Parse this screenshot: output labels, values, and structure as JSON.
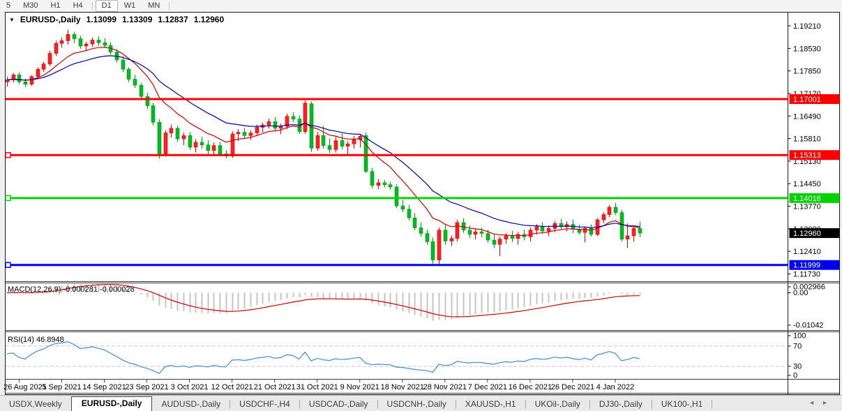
{
  "toolbar": {
    "buttons": [
      {
        "label": "5"
      },
      {
        "label": "M30"
      },
      {
        "label": "H1"
      },
      {
        "label": "H4"
      },
      {
        "sep": true
      },
      {
        "label": "D1",
        "active": true
      },
      {
        "label": "W1"
      },
      {
        "label": "MN"
      },
      {
        "sep": true
      }
    ]
  },
  "chart": {
    "dropdown_icon": "▼",
    "symbol": "EURUSD-,Daily",
    "ohlc": {
      "open": "1.13099",
      "high": "1.13309",
      "low": "1.12837",
      "close": "1.12960"
    }
  },
  "macd_panel": {
    "header": "MACD(12,26,9) -0.000281 -0.000028",
    "axis_ticks": [
      "0.002966",
      "0.00",
      "-0.01042"
    ]
  },
  "rsi_panel": {
    "header": "RSI(14) 46.8948",
    "axis_ticks": [
      "100",
      "70",
      "30",
      "0"
    ]
  },
  "tabs": {
    "active_index": 1,
    "items": [
      "USDX,Weekly",
      "EURUSD-,Daily",
      "AUDUSD-,Daily",
      "USDCHF-,H4",
      "USDCAD-,Daily",
      "USDCNH-,Daily",
      "XAUUSD-,H1",
      "UKOil-,Daily",
      "DJ30-,Daily",
      "UK100-,H1"
    ],
    "scroll_left": "◄",
    "scroll_right": "►"
  },
  "chart_data": {
    "type": "candlestick",
    "title": "EURUSD-,Daily",
    "x_axis": {
      "labels": [
        "26 Aug 2021",
        "5 Sep 2021",
        "14 Sep 2021",
        "23 Sep 2021",
        "3 Oct 2021",
        "12 Oct 2021",
        "21 Oct 2021",
        "31 Oct 2021",
        "9 Nov 2021",
        "18 Nov 2021",
        "28 Nov 2021",
        "7 Dec 2021",
        "16 Dec 2021",
        "26 Dec 2021",
        "4 Jan 2022"
      ],
      "first_label_bar_index": 2,
      "bars_per_label": 7
    },
    "y_axis": {
      "top_value": 1.1921,
      "tick_step": 0.0068,
      "tick_labels": [
        "1.19210",
        "1.18530",
        "1.17850",
        "1.17170",
        "1.16490",
        "1.15810",
        "1.15130",
        "1.14450",
        "1.13770",
        "1.13090",
        "1.12410",
        "1.11730"
      ]
    },
    "candles": [
      [
        1.1752,
        1.1768,
        1.1738,
        1.1758
      ],
      [
        1.1758,
        1.1778,
        1.175,
        1.1773
      ],
      [
        1.1773,
        1.1781,
        1.1745,
        1.1752
      ],
      [
        1.1752,
        1.1762,
        1.1736,
        1.1745
      ],
      [
        1.1745,
        1.1772,
        1.174,
        1.1768
      ],
      [
        1.1768,
        1.1796,
        1.176,
        1.179
      ],
      [
        1.179,
        1.1813,
        1.1782,
        1.1806
      ],
      [
        1.1806,
        1.1846,
        1.18,
        1.1838
      ],
      [
        1.1838,
        1.1876,
        1.183,
        1.1868
      ],
      [
        1.1868,
        1.1886,
        1.1855,
        1.1876
      ],
      [
        1.1876,
        1.1909,
        1.1864,
        1.1895
      ],
      [
        1.1895,
        1.1903,
        1.1869,
        1.1882
      ],
      [
        1.1882,
        1.1891,
        1.1852,
        1.186
      ],
      [
        1.186,
        1.1873,
        1.1845,
        1.1866
      ],
      [
        1.1866,
        1.1886,
        1.1858,
        1.1878
      ],
      [
        1.1878,
        1.1889,
        1.186,
        1.187
      ],
      [
        1.187,
        1.1883,
        1.1854,
        1.1862
      ],
      [
        1.1862,
        1.1871,
        1.1834,
        1.1842
      ],
      [
        1.1842,
        1.1851,
        1.181,
        1.1818
      ],
      [
        1.1818,
        1.1829,
        1.1781,
        1.179
      ],
      [
        1.179,
        1.1796,
        1.1751,
        1.176
      ],
      [
        1.176,
        1.1773,
        1.1734,
        1.1742
      ],
      [
        1.1742,
        1.1749,
        1.1699,
        1.1708
      ],
      [
        1.1708,
        1.1719,
        1.1671,
        1.168
      ],
      [
        1.168,
        1.1689,
        1.1621,
        1.163
      ],
      [
        1.163,
        1.1639,
        1.1521,
        1.1535
      ],
      [
        1.1535,
        1.1606,
        1.1527,
        1.1598
      ],
      [
        1.1598,
        1.1623,
        1.1584,
        1.1612
      ],
      [
        1.1612,
        1.1619,
        1.1571,
        1.158
      ],
      [
        1.158,
        1.1599,
        1.1561,
        1.159
      ],
      [
        1.159,
        1.1601,
        1.1547,
        1.1555
      ],
      [
        1.1555,
        1.1579,
        1.1539,
        1.157
      ],
      [
        1.157,
        1.1586,
        1.1551,
        1.1562
      ],
      [
        1.1562,
        1.1576,
        1.1534,
        1.1545
      ],
      [
        1.1545,
        1.1569,
        1.1529,
        1.156
      ],
      [
        1.156,
        1.1571,
        1.1527,
        1.1535
      ],
      [
        1.1535,
        1.1546,
        1.1521,
        1.1528
      ],
      [
        1.1528,
        1.1603,
        1.1523,
        1.1595
      ],
      [
        1.1595,
        1.1609,
        1.1574,
        1.16
      ],
      [
        1.16,
        1.1613,
        1.1581,
        1.159
      ],
      [
        1.159,
        1.1606,
        1.1577,
        1.1598
      ],
      [
        1.1598,
        1.1623,
        1.1589,
        1.1615
      ],
      [
        1.1615,
        1.1629,
        1.1599,
        1.1622
      ],
      [
        1.1622,
        1.1641,
        1.1611,
        1.1632
      ],
      [
        1.1632,
        1.1646,
        1.1604,
        1.1612
      ],
      [
        1.1612,
        1.1626,
        1.1594,
        1.1618
      ],
      [
        1.1618,
        1.1656,
        1.1609,
        1.1648
      ],
      [
        1.1648,
        1.1661,
        1.1631,
        1.164
      ],
      [
        1.164,
        1.1651,
        1.1595,
        1.1602
      ],
      [
        1.1602,
        1.1696,
        1.1596,
        1.1688
      ],
      [
        1.1686,
        1.1693,
        1.1541,
        1.1552
      ],
      [
        1.1552,
        1.1601,
        1.1544,
        1.159
      ],
      [
        1.159,
        1.1619,
        1.1551,
        1.156
      ],
      [
        1.156,
        1.1581,
        1.1537,
        1.1548
      ],
      [
        1.1548,
        1.1586,
        1.1539,
        1.1575
      ],
      [
        1.1575,
        1.1596,
        1.1549,
        1.1558
      ],
      [
        1.1558,
        1.1573,
        1.1531,
        1.1565
      ],
      [
        1.1565,
        1.1589,
        1.1551,
        1.1578
      ],
      [
        1.1578,
        1.1596,
        1.1554,
        1.1588
      ],
      [
        1.159,
        1.1599,
        1.1477,
        1.1482
      ],
      [
        1.1482,
        1.1493,
        1.1431,
        1.144
      ],
      [
        1.144,
        1.1459,
        1.1429,
        1.1448
      ],
      [
        1.1448,
        1.1456,
        1.1434,
        1.1442
      ],
      [
        1.1442,
        1.1451,
        1.1427,
        1.1435
      ],
      [
        1.1435,
        1.1443,
        1.1371,
        1.1378
      ],
      [
        1.1378,
        1.1396,
        1.1359,
        1.1368
      ],
      [
        1.1368,
        1.1381,
        1.1334,
        1.1342
      ],
      [
        1.1342,
        1.1356,
        1.1304,
        1.1312
      ],
      [
        1.1312,
        1.1329,
        1.1285,
        1.1295
      ],
      [
        1.1295,
        1.1306,
        1.1261,
        1.127
      ],
      [
        1.127,
        1.1283,
        1.1204,
        1.1215
      ],
      [
        1.1215,
        1.1313,
        1.1199,
        1.1305
      ],
      [
        1.1305,
        1.1321,
        1.1261,
        1.1272
      ],
      [
        1.1272,
        1.1289,
        1.1257,
        1.128
      ],
      [
        1.128,
        1.1336,
        1.1271,
        1.1328
      ],
      [
        1.1328,
        1.1341,
        1.1297,
        1.1305
      ],
      [
        1.1305,
        1.1319,
        1.1281,
        1.1292
      ],
      [
        1.1292,
        1.1309,
        1.1277,
        1.13
      ],
      [
        1.13,
        1.1313,
        1.1284,
        1.1295
      ],
      [
        1.1295,
        1.1306,
        1.1267,
        1.1275
      ],
      [
        1.1275,
        1.1293,
        1.1251,
        1.1262
      ],
      [
        1.1262,
        1.1286,
        1.1227,
        1.1278
      ],
      [
        1.1278,
        1.1296,
        1.1264,
        1.1288
      ],
      [
        1.1288,
        1.1303,
        1.1269,
        1.128
      ],
      [
        1.128,
        1.1299,
        1.1261,
        1.1292
      ],
      [
        1.1292,
        1.1306,
        1.1274,
        1.1285
      ],
      [
        1.1285,
        1.1313,
        1.1271,
        1.1305
      ],
      [
        1.1305,
        1.1323,
        1.1291,
        1.1315
      ],
      [
        1.1315,
        1.1329,
        1.1294,
        1.1302
      ],
      [
        1.1302,
        1.1319,
        1.1287,
        1.131
      ],
      [
        1.131,
        1.1333,
        1.1299,
        1.1325
      ],
      [
        1.1325,
        1.1339,
        1.1307,
        1.1315
      ],
      [
        1.1315,
        1.1331,
        1.1301,
        1.1322
      ],
      [
        1.1322,
        1.1337,
        1.1296,
        1.1308
      ],
      [
        1.1308,
        1.1321,
        1.1291,
        1.1298
      ],
      [
        1.1298,
        1.1316,
        1.1268,
        1.131
      ],
      [
        1.131,
        1.1322,
        1.1286,
        1.1292
      ],
      [
        1.1292,
        1.1341,
        1.1287,
        1.1336
      ],
      [
        1.1336,
        1.1359,
        1.1326,
        1.1352
      ],
      [
        1.1352,
        1.1381,
        1.1344,
        1.1374
      ],
      [
        1.1374,
        1.1387,
        1.1351,
        1.1358
      ],
      [
        1.1358,
        1.1366,
        1.1271,
        1.1278
      ],
      [
        1.1278,
        1.1325,
        1.1252,
        1.1288
      ],
      [
        1.1288,
        1.1315,
        1.127,
        1.131
      ],
      [
        1.13099,
        1.13309,
        1.12837,
        1.1296
      ]
    ],
    "overlays": [
      {
        "name": "ma-fast",
        "type": "EMA",
        "period": 10,
        "color": "#cc0000"
      },
      {
        "name": "ma-slow",
        "type": "EMA",
        "period": 21,
        "color": "#0000a8"
      }
    ],
    "levels": [
      {
        "price": 1.17001,
        "label": "1.17001",
        "color": "#ff0000",
        "handle": false
      },
      {
        "price": 1.15313,
        "label": "1.15313",
        "color": "#ff0000",
        "handle": true
      },
      {
        "price": 1.14016,
        "label": "1.14016",
        "color": "#00d400",
        "handle": true
      },
      {
        "price": 1.11999,
        "label": "1.11999",
        "color": "#0000f0",
        "handle": true
      }
    ],
    "current_price": {
      "price": 1.1296,
      "label": "1.12960",
      "bg": "#000000",
      "fg": "#ffffff"
    },
    "macd": {
      "fast": 12,
      "slow": 26,
      "signal": 9,
      "current_macd": -0.000281,
      "current_signal": -2.8e-05,
      "hist_color": "#c4c4c4",
      "signal_color": "#cc0000",
      "ylim": [
        -0.01042,
        0.002966
      ]
    },
    "rsi": {
      "period": 14,
      "current": 46.8948,
      "color": "#3e8fd0",
      "guides": [
        70,
        30
      ],
      "ylim": [
        0,
        100
      ]
    },
    "colors": {
      "bull_fill": "#ff2020",
      "bull_border": "#d40000",
      "bear_fill": "#00bb22",
      "bear_border": "#009417",
      "background": "#ffffff",
      "grid_guide": "#c8c8c8"
    }
  }
}
